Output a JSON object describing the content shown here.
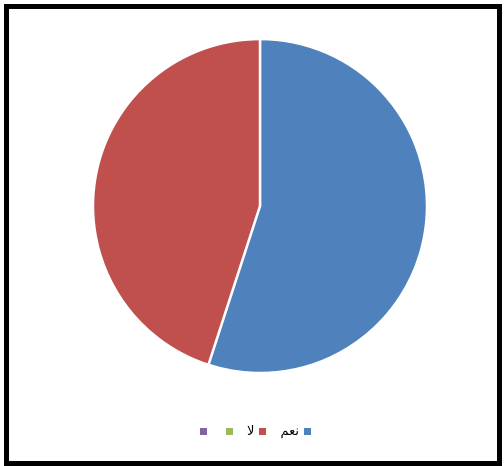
{
  "chart_data": {
    "type": "pie",
    "categories": [
      "نعم",
      "لا",
      "",
      ""
    ],
    "values": [
      55,
      45,
      0,
      0
    ],
    "colors": [
      "#4F81BD",
      "#C0504D",
      "#9BBB59",
      "#8064A2"
    ],
    "start_angle_deg": 0,
    "direction": "clockwise",
    "legend_position": "bottom"
  }
}
